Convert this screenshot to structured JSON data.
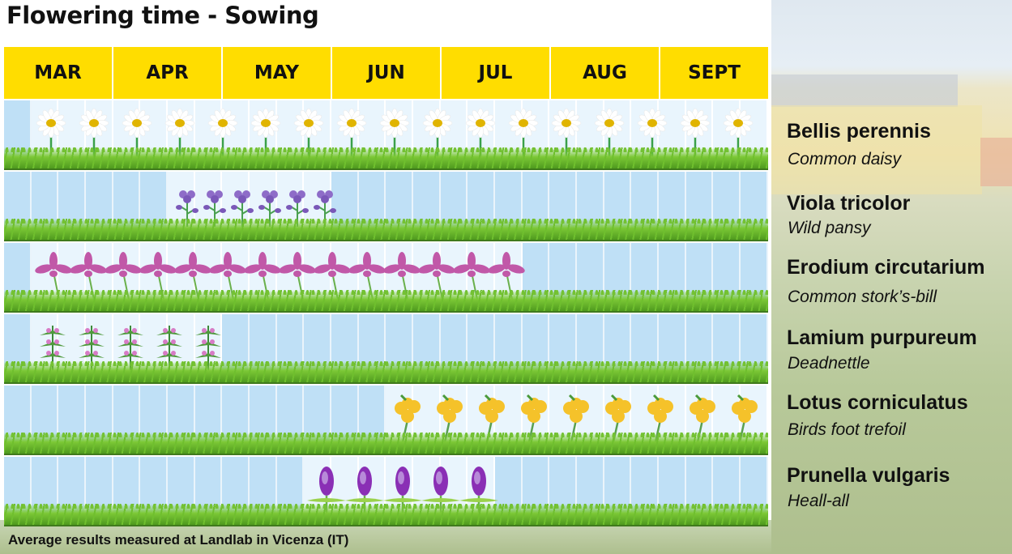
{
  "title": "Flowering time - Sowing",
  "footer": "Average results measured at Landlab in Vicenza (IT)",
  "colors": {
    "header": "#FFDD00",
    "not_flowering": "#BFE0F6",
    "flowering": "#E9F5FD",
    "grass": "#6FBF2E"
  },
  "chart_data": {
    "type": "gantt",
    "title": "Flowering time - Sowing",
    "categories": [
      "MAR",
      "APR",
      "MAY",
      "JUN",
      "JUL",
      "AUG",
      "SEPT"
    ],
    "weeks_per_month": 4,
    "series": [
      {
        "name": "Bellis perennis",
        "common": "Common daisy",
        "icon": "daisy-icon",
        "flower_color": "#FFFFFF",
        "start_week": 2,
        "end_week": 28
      },
      {
        "name": "Viola tricolor",
        "common": "Wild pansy",
        "icon": "pansy-icon",
        "flower_color": "#8E6CC8",
        "start_week": 7,
        "end_week": 12
      },
      {
        "name": "Erodium circutarium",
        "common": "Common stork’s-bill",
        "icon": "storksbill-icon",
        "flower_color": "#C158A8",
        "start_week": 2,
        "end_week": 19
      },
      {
        "name": "Lamium purpureum",
        "common": "Deadnettle",
        "icon": "deadnettle-icon",
        "flower_color": "#D77BC6",
        "start_week": 2,
        "end_week": 8
      },
      {
        "name": "Lotus corniculatus",
        "common": "Birds foot trefoil",
        "icon": "trefoil-icon",
        "flower_color": "#F5C22A",
        "start_week": 15,
        "end_week": 28
      },
      {
        "name": "Prunella vulgaris",
        "common": "Heall-all",
        "icon": "selfheal-icon",
        "flower_color": "#8A2FB5",
        "start_week": 12,
        "end_week": 18
      }
    ]
  }
}
